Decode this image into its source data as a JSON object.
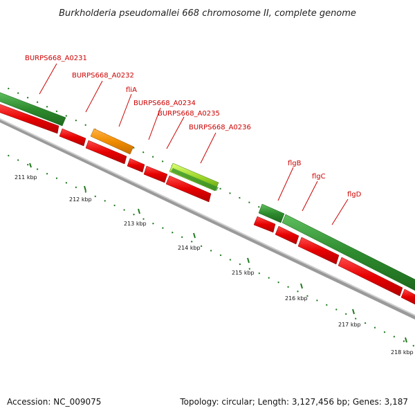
{
  "title": "Burkholderia pseudomallei 668 chromosome II, complete genome",
  "footer": {
    "accession": "Accession: NC_009075",
    "topology": "Topology: circular; Length: 3,127,456 bp; Genes: 3,187"
  },
  "colors": {
    "forward_gene": "#2e8b2e",
    "reverse_gene": "#e60000",
    "highlight_orange": "#f08c00",
    "highlight_lime": "#9ed62a",
    "backbone": "#8a8a8a",
    "label": "#cc0000",
    "tick": "#1f7a1f"
  },
  "ticks": [
    {
      "label": "211 kbp"
    },
    {
      "label": "212 kbp"
    },
    {
      "label": "213 kbp"
    },
    {
      "label": "214 kbp"
    },
    {
      "label": "215 kbp"
    },
    {
      "label": "216 kbp"
    },
    {
      "label": "217 kbp"
    },
    {
      "label": "218 kbp"
    }
  ],
  "gene_labels": [
    {
      "name": "BURPS668_A0231"
    },
    {
      "name": "BURPS668_A0232"
    },
    {
      "name": "fliA"
    },
    {
      "name": "BURPS668_A0234"
    },
    {
      "name": "BURPS668_A0235"
    },
    {
      "name": "BURPS668_A0236"
    },
    {
      "name": "flgB"
    },
    {
      "name": "flgC"
    },
    {
      "name": "flgD"
    }
  ]
}
